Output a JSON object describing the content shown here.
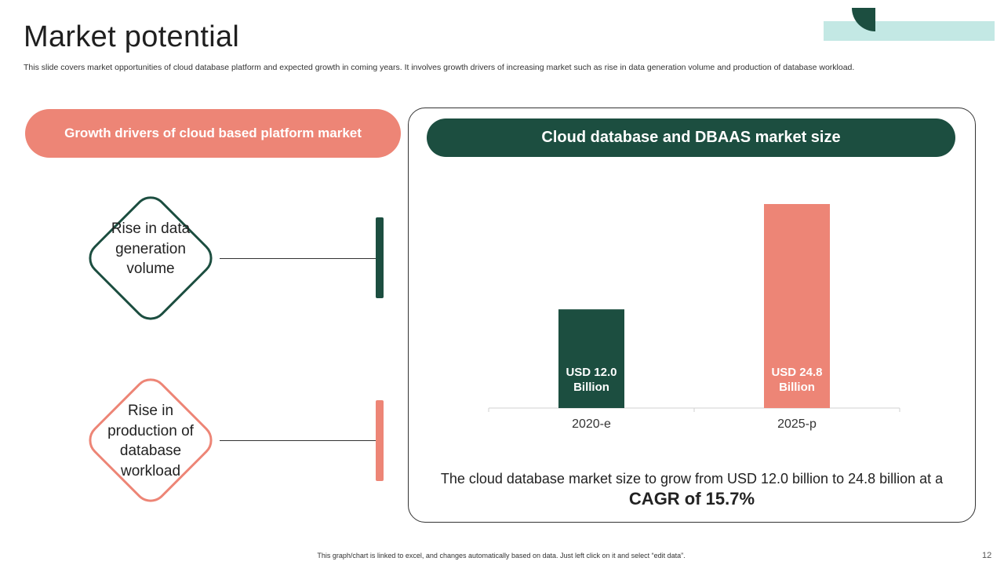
{
  "slide": {
    "title": "Market potential",
    "subtitle": "This slide covers market opportunities of cloud database platform and expected growth in coming years. It involves growth drivers of increasing market such as rise in data generation volume and production of database workload.",
    "footnote": "This graph/chart is linked to excel, and changes automatically based on data. Just left click on it and select “edit data”.",
    "page_number": "12"
  },
  "drivers": {
    "heading": "Growth drivers of cloud based platform market",
    "items": [
      {
        "label": "Rise in data generation volume",
        "color": "#1c4e40"
      },
      {
        "label": "Rise in production of database workload",
        "color": "#ed8576"
      }
    ]
  },
  "market": {
    "heading": "Cloud database and DBAAS market size",
    "caption_prefix": "The cloud database market size to grow from USD 12.0 billion to 24.8 billion at a",
    "caption_highlight": "CAGR of 15.7%"
  },
  "colors": {
    "dark_green": "#1c4e40",
    "salmon": "#ed8576",
    "light_teal": "#c3e8e4"
  },
  "chart_data": {
    "type": "bar",
    "title": "Cloud database and DBAAS market size",
    "categories": [
      "2020-e",
      "2025-p"
    ],
    "values": [
      12.0,
      24.8
    ],
    "bar_labels": [
      "USD 12.0 Billion",
      "USD 24.8 Billion"
    ],
    "bar_colors": [
      "#1c4e40",
      "#ed8576"
    ],
    "unit": "USD Billion",
    "xlabel": "",
    "ylabel": "",
    "ylim": [
      0,
      24.8
    ],
    "grid": false,
    "legend": "none"
  }
}
